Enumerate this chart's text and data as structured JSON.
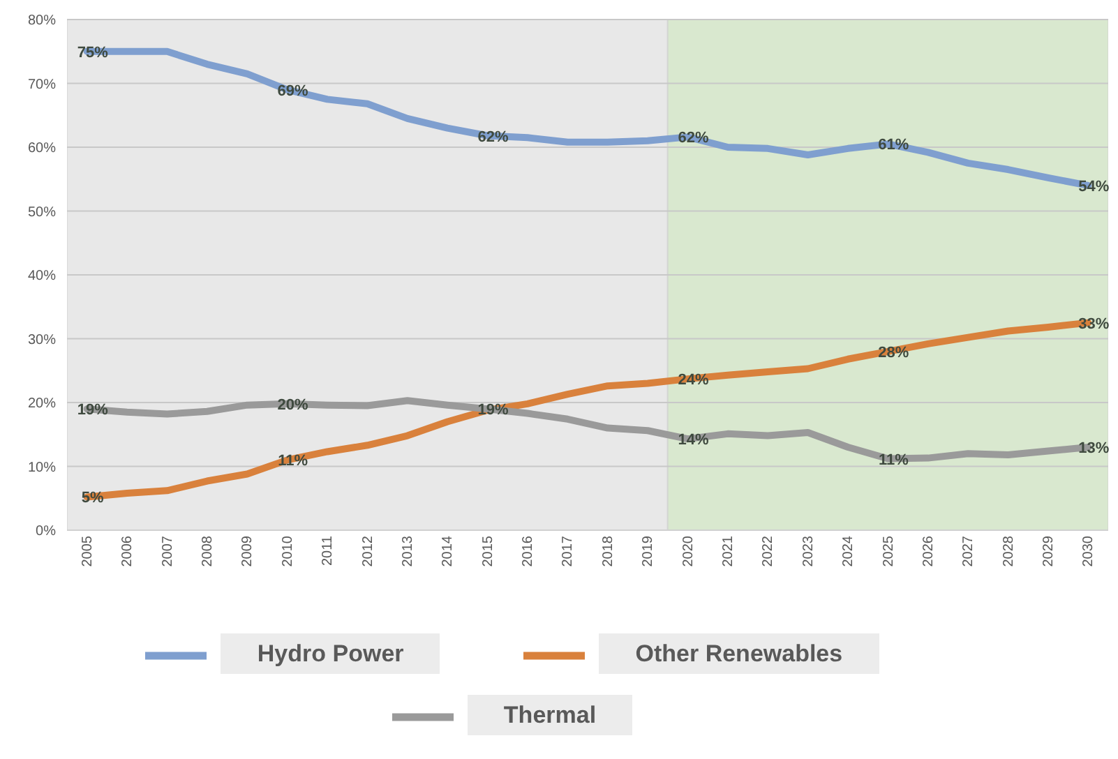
{
  "chart_data": {
    "type": "line",
    "categories": [
      "2005",
      "2006",
      "2007",
      "2008",
      "2009",
      "2010",
      "2011",
      "2012",
      "2013",
      "2014",
      "2015",
      "2016",
      "2017",
      "2018",
      "2019",
      "2020",
      "2021",
      "2022",
      "2023",
      "2024",
      "2025",
      "2026",
      "2027",
      "2028",
      "2029",
      "2030"
    ],
    "series": [
      {
        "name": "Hydro Power",
        "color": "#7f9fcf",
        "values": [
          75,
          75,
          75,
          73,
          71.5,
          69,
          67.5,
          66.8,
          64.5,
          63,
          61.8,
          61.5,
          60.8,
          60.8,
          61,
          61.6,
          60,
          59.8,
          58.8,
          59.8,
          60.5,
          59.2,
          57.5,
          56.5,
          55.2,
          54
        ],
        "value_labels": [
          "75%",
          null,
          null,
          null,
          null,
          "69%",
          null,
          null,
          null,
          null,
          "62%",
          null,
          null,
          null,
          null,
          "62%",
          null,
          null,
          null,
          null,
          "61%",
          null,
          null,
          null,
          null,
          "54%"
        ]
      },
      {
        "name": "Other Renewables",
        "color": "#d9813c",
        "values": [
          5.2,
          5.8,
          6.2,
          7.7,
          8.8,
          11,
          12.3,
          13.3,
          14.8,
          17,
          18.8,
          19.8,
          21.3,
          22.6,
          23,
          23.7,
          24.3,
          24.8,
          25.3,
          26.8,
          28,
          29.2,
          30.2,
          31.2,
          31.8,
          32.5
        ],
        "value_labels": [
          "5%",
          null,
          null,
          null,
          null,
          "11%",
          null,
          null,
          null,
          null,
          null,
          null,
          null,
          null,
          null,
          "24%",
          null,
          null,
          null,
          null,
          "28%",
          null,
          null,
          null,
          null,
          "33%"
        ]
      },
      {
        "name": "Thermal",
        "color": "#9a9a9a",
        "values": [
          19,
          18.5,
          18.2,
          18.6,
          19.6,
          19.8,
          19.6,
          19.5,
          20.3,
          19.6,
          19,
          18.3,
          17.4,
          16,
          15.6,
          14.3,
          15.1,
          14.8,
          15.3,
          13,
          11.2,
          11.3,
          12,
          11.8,
          12.4,
          13
        ],
        "value_labels": [
          "19%",
          null,
          null,
          null,
          null,
          "20%",
          null,
          null,
          null,
          null,
          "19%",
          null,
          null,
          null,
          null,
          "14%",
          null,
          null,
          null,
          null,
          "11%",
          null,
          null,
          null,
          null,
          "13%"
        ]
      }
    ],
    "ylim": [
      0,
      80
    ],
    "yticks": [
      {
        "value": 0,
        "label": "0%"
      },
      {
        "value": 10,
        "label": "10%"
      },
      {
        "value": 20,
        "label": "20%"
      },
      {
        "value": 30,
        "label": "30%"
      },
      {
        "value": 40,
        "label": "40%"
      },
      {
        "value": 50,
        "label": "50%"
      },
      {
        "value": 60,
        "label": "60%"
      },
      {
        "value": 70,
        "label": "70%"
      },
      {
        "value": 80,
        "label": "80%"
      }
    ],
    "bands": [
      {
        "axis": "x",
        "from": "2005",
        "to": "2019",
        "color": "#e8e8e8"
      },
      {
        "axis": "x",
        "from": "2020",
        "to": "2030",
        "color": "#d9e8cf"
      }
    ],
    "grid": "y",
    "legend": "bottom",
    "marker": "none",
    "line_style": "solid"
  }
}
